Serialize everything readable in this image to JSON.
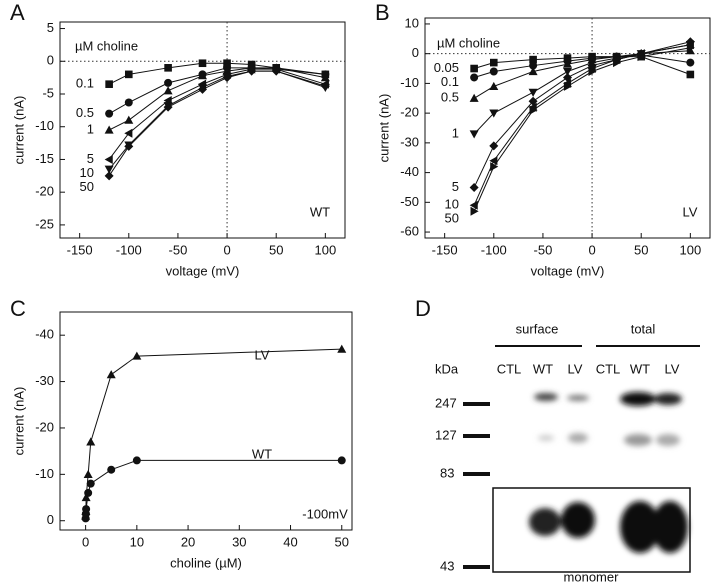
{
  "chart_data": [
    {
      "type": "line",
      "panel": "A",
      "xlabel": "voltage (mV)",
      "ylabel": "current (nA)",
      "annotations": [
        "µM choline",
        "WT"
      ],
      "xlim": [
        -170,
        120
      ],
      "xticks": [
        -150,
        -100,
        -50,
        0,
        50,
        100
      ],
      "ylim": [
        -27,
        6
      ],
      "yticks": [
        -25,
        -20,
        -15,
        -10,
        -5,
        0,
        5
      ],
      "x": [
        -120,
        -100,
        -60,
        -25,
        0,
        25,
        50,
        100
      ],
      "series": [
        {
          "name": "0.1",
          "color": "#111",
          "marker": "square",
          "values": [
            -3.5,
            -2,
            -1,
            -0.3,
            -0.3,
            -0.5,
            -1,
            -2
          ]
        },
        {
          "name": "0.5",
          "color": "#111",
          "marker": "circle",
          "values": [
            -8,
            -6.3,
            -3.3,
            -2,
            -1,
            -1,
            -1.2,
            -2
          ]
        },
        {
          "name": "1",
          "color": "#111",
          "marker": "triangle-up",
          "values": [
            -10.5,
            -9,
            -4.5,
            -2.2,
            -1.5,
            -1,
            -1,
            -2.5
          ]
        },
        {
          "name": "5",
          "color": "#111",
          "marker": "triangle-left",
          "values": [
            -15,
            -11,
            -6,
            -3.5,
            -2,
            -1.2,
            -1.2,
            -3.5
          ]
        },
        {
          "name": "10",
          "color": "#111",
          "marker": "triangle-down",
          "values": [
            -16.5,
            -12.8,
            -6.8,
            -4,
            -2.3,
            -1.5,
            -1.5,
            -4
          ]
        },
        {
          "name": "50",
          "color": "#111",
          "marker": "diamond",
          "values": [
            -17.5,
            -13,
            -7,
            -4.3,
            -2.5,
            -1.5,
            -1.5,
            -3.8
          ]
        }
      ]
    },
    {
      "type": "line",
      "panel": "B",
      "xlabel": "voltage (mV)",
      "ylabel": "current (nA)",
      "annotations": [
        "µM choline",
        "LV"
      ],
      "xlim": [
        -170,
        120
      ],
      "xticks": [
        -150,
        -100,
        -50,
        0,
        50,
        100
      ],
      "ylim": [
        -62,
        12
      ],
      "yticks": [
        -60,
        -50,
        -40,
        -30,
        -20,
        -10,
        0,
        10
      ],
      "x": [
        -120,
        -100,
        -60,
        -25,
        0,
        25,
        50,
        100
      ],
      "series": [
        {
          "name": "0.05",
          "color": "#111",
          "marker": "square",
          "values": [
            -5,
            -3,
            -2,
            -1.5,
            -1,
            -1,
            -1,
            -7
          ]
        },
        {
          "name": "0.1",
          "color": "#111",
          "marker": "circle",
          "values": [
            -8,
            -6,
            -4,
            -2.5,
            -1.5,
            -1,
            -0.5,
            -3
          ]
        },
        {
          "name": "0.5",
          "color": "#111",
          "marker": "triangle-up",
          "values": [
            -15,
            -11,
            -6,
            -3.5,
            -2,
            -1,
            0,
            1
          ]
        },
        {
          "name": "1",
          "color": "#111",
          "marker": "triangle-down",
          "values": [
            -27,
            -20,
            -13,
            -6,
            -3,
            -1.5,
            0,
            3
          ]
        },
        {
          "name": "5",
          "color": "#111",
          "marker": "diamond",
          "values": [
            -45,
            -31,
            -16,
            -8,
            -4,
            -2,
            0,
            4
          ]
        },
        {
          "name": "10",
          "color": "#111",
          "marker": "triangle-left",
          "values": [
            -51,
            -36,
            -18,
            -10,
            -5,
            -2,
            0,
            3
          ]
        },
        {
          "name": "50",
          "color": "#111",
          "marker": "triangle-right",
          "values": [
            -53,
            -38,
            -19,
            -11,
            -6,
            -3,
            -1,
            2
          ]
        }
      ]
    },
    {
      "type": "line",
      "panel": "C",
      "xlabel": "choline (µM)",
      "ylabel": "current  (nA)",
      "annotations": [
        "LV",
        "WT",
        "-100mV"
      ],
      "xlim": [
        -5,
        52
      ],
      "xticks": [
        0,
        10,
        20,
        30,
        40,
        50
      ],
      "ylim": [
        2,
        -45
      ],
      "yticks": [
        0,
        -10,
        -20,
        -30,
        -40
      ],
      "x": [
        0.01,
        0.05,
        0.1,
        0.5,
        1,
        5,
        10,
        50
      ],
      "series": [
        {
          "name": "LV",
          "color": "#111",
          "marker": "triangle-up",
          "values": [
            -1,
            -2,
            -5,
            -10,
            -17,
            -31.5,
            -35.5,
            -37
          ]
        },
        {
          "name": "WT",
          "color": "#111",
          "marker": "circle",
          "values": [
            -0.5,
            -1.5,
            -2.5,
            -6,
            -8,
            -11,
            -13,
            -13
          ]
        }
      ]
    }
  ],
  "blot": {
    "panel": "D",
    "groups": [
      "surface",
      "total"
    ],
    "lanes": [
      "CTL",
      "WT",
      "LV",
      "CTL",
      "WT",
      "LV"
    ],
    "unit": "kDa",
    "markers": [
      "247",
      "127",
      "83",
      "43"
    ],
    "caption": "monomer"
  }
}
